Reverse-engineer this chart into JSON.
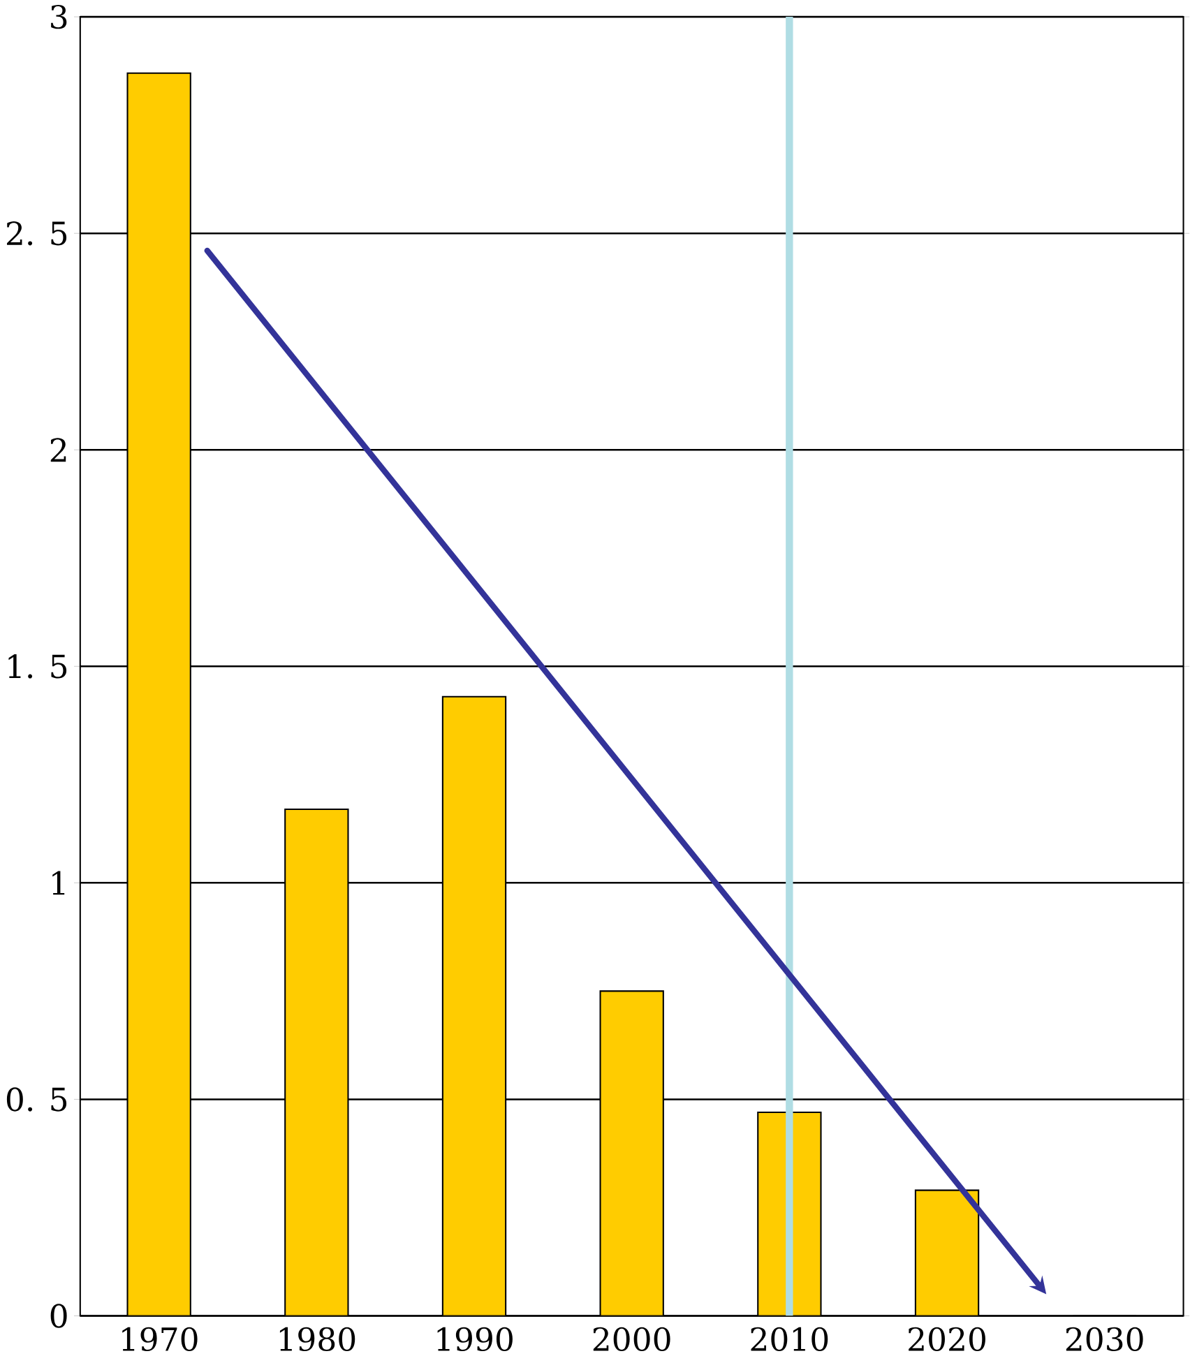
{
  "chart_data": {
    "type": "bar",
    "categories": [
      "1970",
      "1980",
      "1990",
      "2000",
      "2010",
      "2020",
      "2030"
    ],
    "values": [
      2.87,
      1.17,
      1.43,
      0.75,
      0.47,
      0.29,
      0
    ],
    "color": "#ffcc00",
    "ylim": [
      0,
      3
    ],
    "yticks": [
      0,
      {
        "value": 0.5,
        "label": "0. 5"
      },
      1,
      {
        "value": 1.5,
        "label": "1. 5"
      },
      2,
      {
        "value": 2.5,
        "label": "2. 5"
      },
      3
    ],
    "grid": "y",
    "ref_lines": [
      {
        "axis": "x",
        "value": "2010",
        "color": "#b0dde4"
      }
    ]
  }
}
